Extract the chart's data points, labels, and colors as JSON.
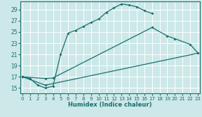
{
  "xlabel": "Humidex (Indice chaleur)",
  "bg_color": "#cce8e8",
  "line_color": "#1a6e6e",
  "grid_color": "#ffffff",
  "xticks": [
    0,
    1,
    2,
    3,
    4,
    5,
    6,
    7,
    8,
    9,
    10,
    11,
    12,
    13,
    14,
    15,
    16,
    17,
    18,
    19,
    20,
    21,
    22,
    23
  ],
  "yticks": [
    15,
    17,
    19,
    21,
    23,
    25,
    27,
    29
  ],
  "xlim": [
    -0.3,
    23.3
  ],
  "ylim": [
    14.0,
    30.5
  ],
  "line1_x": [
    0,
    1,
    2,
    3,
    4,
    5,
    6,
    7,
    8,
    9,
    10,
    11,
    12,
    13,
    14,
    15,
    16,
    17
  ],
  "line1_y": [
    17.0,
    16.7,
    15.5,
    15.0,
    15.3,
    21.0,
    24.8,
    25.3,
    26.0,
    26.7,
    27.3,
    28.5,
    29.3,
    30.0,
    29.8,
    29.5,
    28.8,
    28.3
  ],
  "line2_x": [
    0,
    3,
    4,
    17,
    19,
    20,
    22,
    23
  ],
  "line2_y": [
    17.0,
    16.7,
    16.8,
    25.8,
    24.3,
    23.8,
    22.8,
    21.3
  ],
  "line3_x": [
    0,
    3,
    23
  ],
  "line3_y": [
    17.0,
    15.5,
    21.2
  ]
}
